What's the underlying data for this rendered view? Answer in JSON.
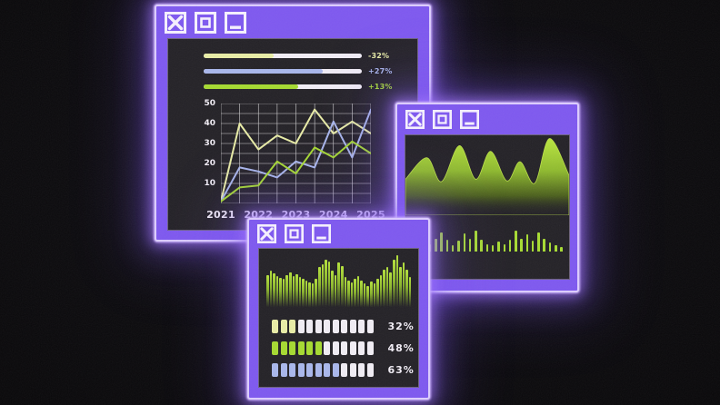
{
  "desktop": {
    "background": "#0b0a0d"
  },
  "colors": {
    "window_purple": "#7e58f0",
    "window_edge_light": "#ddcdff",
    "panel_dark": "#232126",
    "icon_white": "#f6f1ff",
    "text_white": "#f2eef6",
    "yellow": "#e9eda6",
    "blue": "#a9b7ec",
    "green": "#a6da30",
    "block_unfilled": "#f1edf4"
  },
  "windows": {
    "analytics": {
      "titlebar_icons": [
        "close",
        "maximize",
        "minimize"
      ]
    },
    "wave": {
      "titlebar_icons": [
        "close",
        "maximize",
        "minimize"
      ]
    },
    "stats": {
      "titlebar_icons": [
        "close",
        "maximize",
        "minimize"
      ]
    }
  },
  "chart_data": [
    {
      "id": "kpi_bars",
      "type": "bar",
      "orientation": "horizontal",
      "items": [
        {
          "label": "-32%",
          "fill_pct": 44,
          "color": "#e9eda6"
        },
        {
          "label": "+27%",
          "fill_pct": 75,
          "color": "#a9b7ec"
        },
        {
          "label": "+13%",
          "fill_pct": 60,
          "color": "#a6da30"
        }
      ]
    },
    {
      "id": "line_chart",
      "type": "line",
      "x": [
        2021,
        2021.5,
        2022,
        2022.5,
        2023,
        2023.5,
        2024,
        2024.5,
        2025
      ],
      "x_tick_labels": [
        "2021",
        "2022",
        "2023",
        "2024",
        "2025"
      ],
      "y_ticks": [
        10,
        20,
        30,
        40,
        50
      ],
      "ylim": [
        0,
        50
      ],
      "grid": {
        "y_step": 5,
        "x_step": 0.5,
        "color": "#ffffff"
      },
      "legend": "none",
      "series": [
        {
          "name": "yellow-series",
          "color": "#e9eda6",
          "values": [
            1,
            40,
            27,
            34,
            30,
            47,
            35,
            41,
            35
          ]
        },
        {
          "name": "blue-series",
          "color": "#a9b7ec",
          "values": [
            1,
            18,
            16,
            13,
            21,
            18,
            41,
            23,
            47
          ]
        },
        {
          "name": "green-series",
          "color": "#a6da30",
          "values": [
            1,
            8,
            9,
            21,
            15,
            28,
            23,
            31,
            25
          ]
        }
      ]
    },
    {
      "id": "area_wave",
      "type": "area",
      "points_pct": [
        [
          0,
          55
        ],
        [
          13,
          28
        ],
        [
          22,
          58
        ],
        [
          33,
          13
        ],
        [
          43,
          55
        ],
        [
          52,
          20
        ],
        [
          62,
          57
        ],
        [
          70,
          33
        ],
        [
          79,
          60
        ],
        [
          88,
          4
        ],
        [
          100,
          50
        ]
      ],
      "fill_top": "#b9e63e",
      "fill_bottom": "transparent"
    },
    {
      "id": "sparkline",
      "type": "bar",
      "values_pct": [
        30,
        55,
        80,
        35,
        60,
        88,
        55,
        28,
        50,
        82,
        60,
        95,
        55,
        35,
        28,
        45,
        33,
        55,
        95,
        60,
        78,
        50,
        88,
        60,
        40,
        28,
        22
      ]
    },
    {
      "id": "histogram",
      "type": "bar",
      "values_pct": [
        62,
        70,
        66,
        60,
        57,
        55,
        62,
        68,
        60,
        64,
        59,
        55,
        52,
        49,
        46,
        56,
        78,
        83,
        92,
        88,
        70,
        62,
        86,
        80,
        58,
        52,
        48,
        55,
        60,
        52,
        46,
        42,
        50,
        47,
        56,
        63,
        72,
        78,
        68,
        92,
        100,
        78,
        86,
        72,
        58
      ]
    },
    {
      "id": "segmented_progress",
      "type": "bar",
      "rows": [
        {
          "label": "32%",
          "filled": 3,
          "total": 12,
          "color": "#e9eda6"
        },
        {
          "label": "48%",
          "filled": 6,
          "total": 12,
          "color": "#a6da30"
        },
        {
          "label": "63%",
          "filled": 8,
          "total": 12,
          "color": "#a9b7ec"
        }
      ]
    }
  ]
}
